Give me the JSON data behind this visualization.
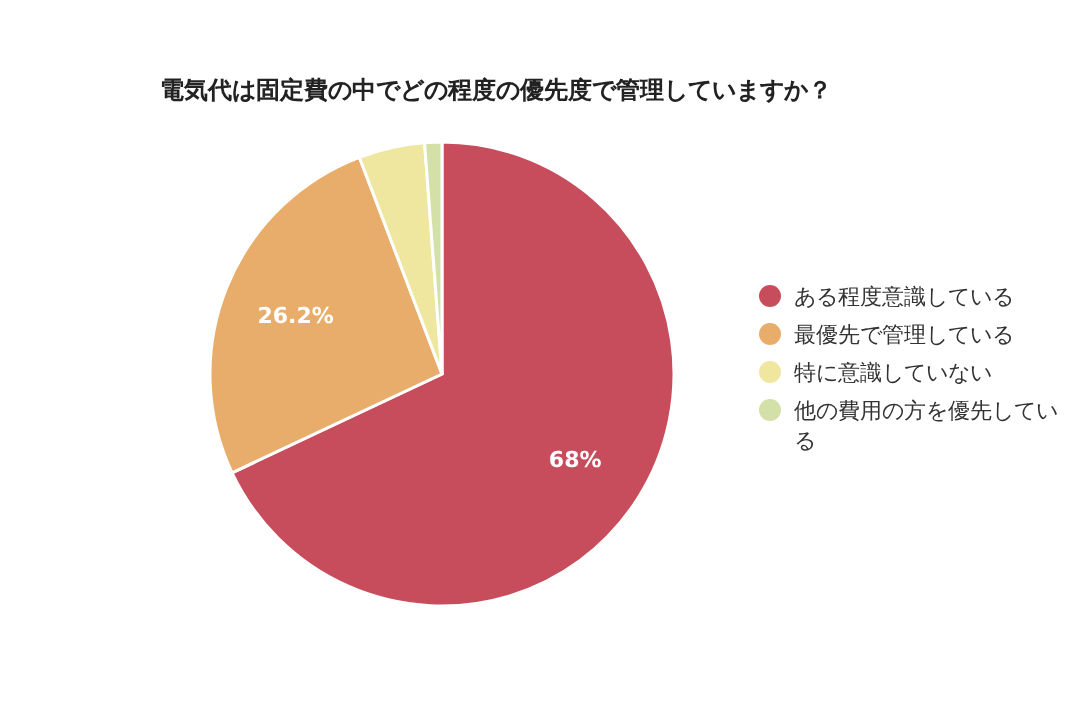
{
  "chart_data": {
    "type": "pie",
    "title": "電気代は固定費の中でどの程度の優先度で管理していますか？",
    "categories": [
      "ある程度意識している",
      "最優先で管理している",
      "特に意識していない",
      "他の費用の方を優先している"
    ],
    "values": [
      68,
      26.2,
      4.6,
      1.2
    ],
    "colors": [
      "#c84d5c",
      "#e8ad6a",
      "#efe79f",
      "#d3e0a8"
    ],
    "value_labels": [
      "68%",
      "26.2%",
      null,
      null
    ],
    "legend": "right"
  }
}
